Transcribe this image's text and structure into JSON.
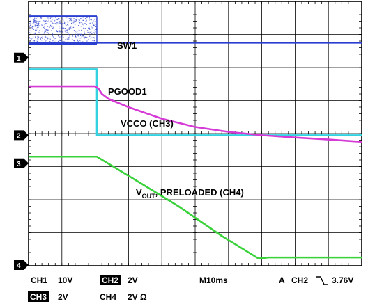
{
  "chart_data": {
    "type": "line",
    "title": "",
    "xlabel": "",
    "ylabel": "",
    "x_divisions": 10,
    "y_divisions": 8,
    "x_per_div_ms": 10,
    "x_range_ms": [
      0,
      100
    ],
    "y_range_div": [
      0,
      8
    ],
    "grid": true,
    "series": [
      {
        "name": "SW1",
        "key": "sw1",
        "color": "#2a3fd0",
        "channel": "1",
        "x": [
          0,
          20.5,
          20.5,
          100
        ],
        "y": [
          6.75,
          6.75,
          6.75,
          6.75
        ],
        "upper_before_ms": 20.5,
        "upper_level_div": 7.55,
        "lower_level_div": 6.72
      },
      {
        "name": "PGOOD1",
        "key": "pgood",
        "color": "#33d2e0",
        "x": [
          0,
          20.5,
          20.5,
          100
        ],
        "y": [
          5.95,
          5.95,
          3.95,
          3.95
        ]
      },
      {
        "name": "VCCO (CH3)",
        "key": "vcco",
        "color": "#d63ad6",
        "x": [
          0,
          20,
          21,
          22,
          24,
          30,
          40,
          50,
          60,
          70,
          80,
          90,
          100
        ],
        "y": [
          5.43,
          5.43,
          5.36,
          5.2,
          5.05,
          4.8,
          4.45,
          4.2,
          4.05,
          3.95,
          3.88,
          3.82,
          3.75
        ]
      },
      {
        "name": "V_OUT, PRELOADED (CH4)",
        "key": "vout",
        "color": "#3ad23a",
        "x": [
          0,
          20.5,
          32,
          45,
          58,
          69,
          72,
          100
        ],
        "y": [
          3.3,
          3.3,
          2.6,
          1.8,
          0.9,
          0.22,
          0.25,
          0.25
        ]
      }
    ],
    "annotations": {
      "sw1": "SW1",
      "pgood": "PGOOD1",
      "vcco": "VCCO (CH3)",
      "vout_main": "V",
      "vout_sub": "OUT",
      "vout_rest": ", PRELOADED (CH4)"
    },
    "channel_markers": [
      {
        "label": "1",
        "level_div": 6.3
      },
      {
        "label": "2",
        "level_div": 3.95
      },
      {
        "label": "3",
        "level_div": 3.1
      },
      {
        "label": "4",
        "level_div": 0.0
      }
    ]
  },
  "footer": {
    "ch1": "CH1",
    "ch1_scale": "10V",
    "ch2_badge": "CH2",
    "ch2_scale": "2V",
    "timebase": "M10ms",
    "trigger_prefix": "A",
    "trigger_channel": "CH2",
    "trigger_level": "3.76V",
    "ch3_badge": "CH3",
    "ch3_scale": "2V",
    "ch4": "CH4",
    "ch4_scale": "2V Ω"
  }
}
